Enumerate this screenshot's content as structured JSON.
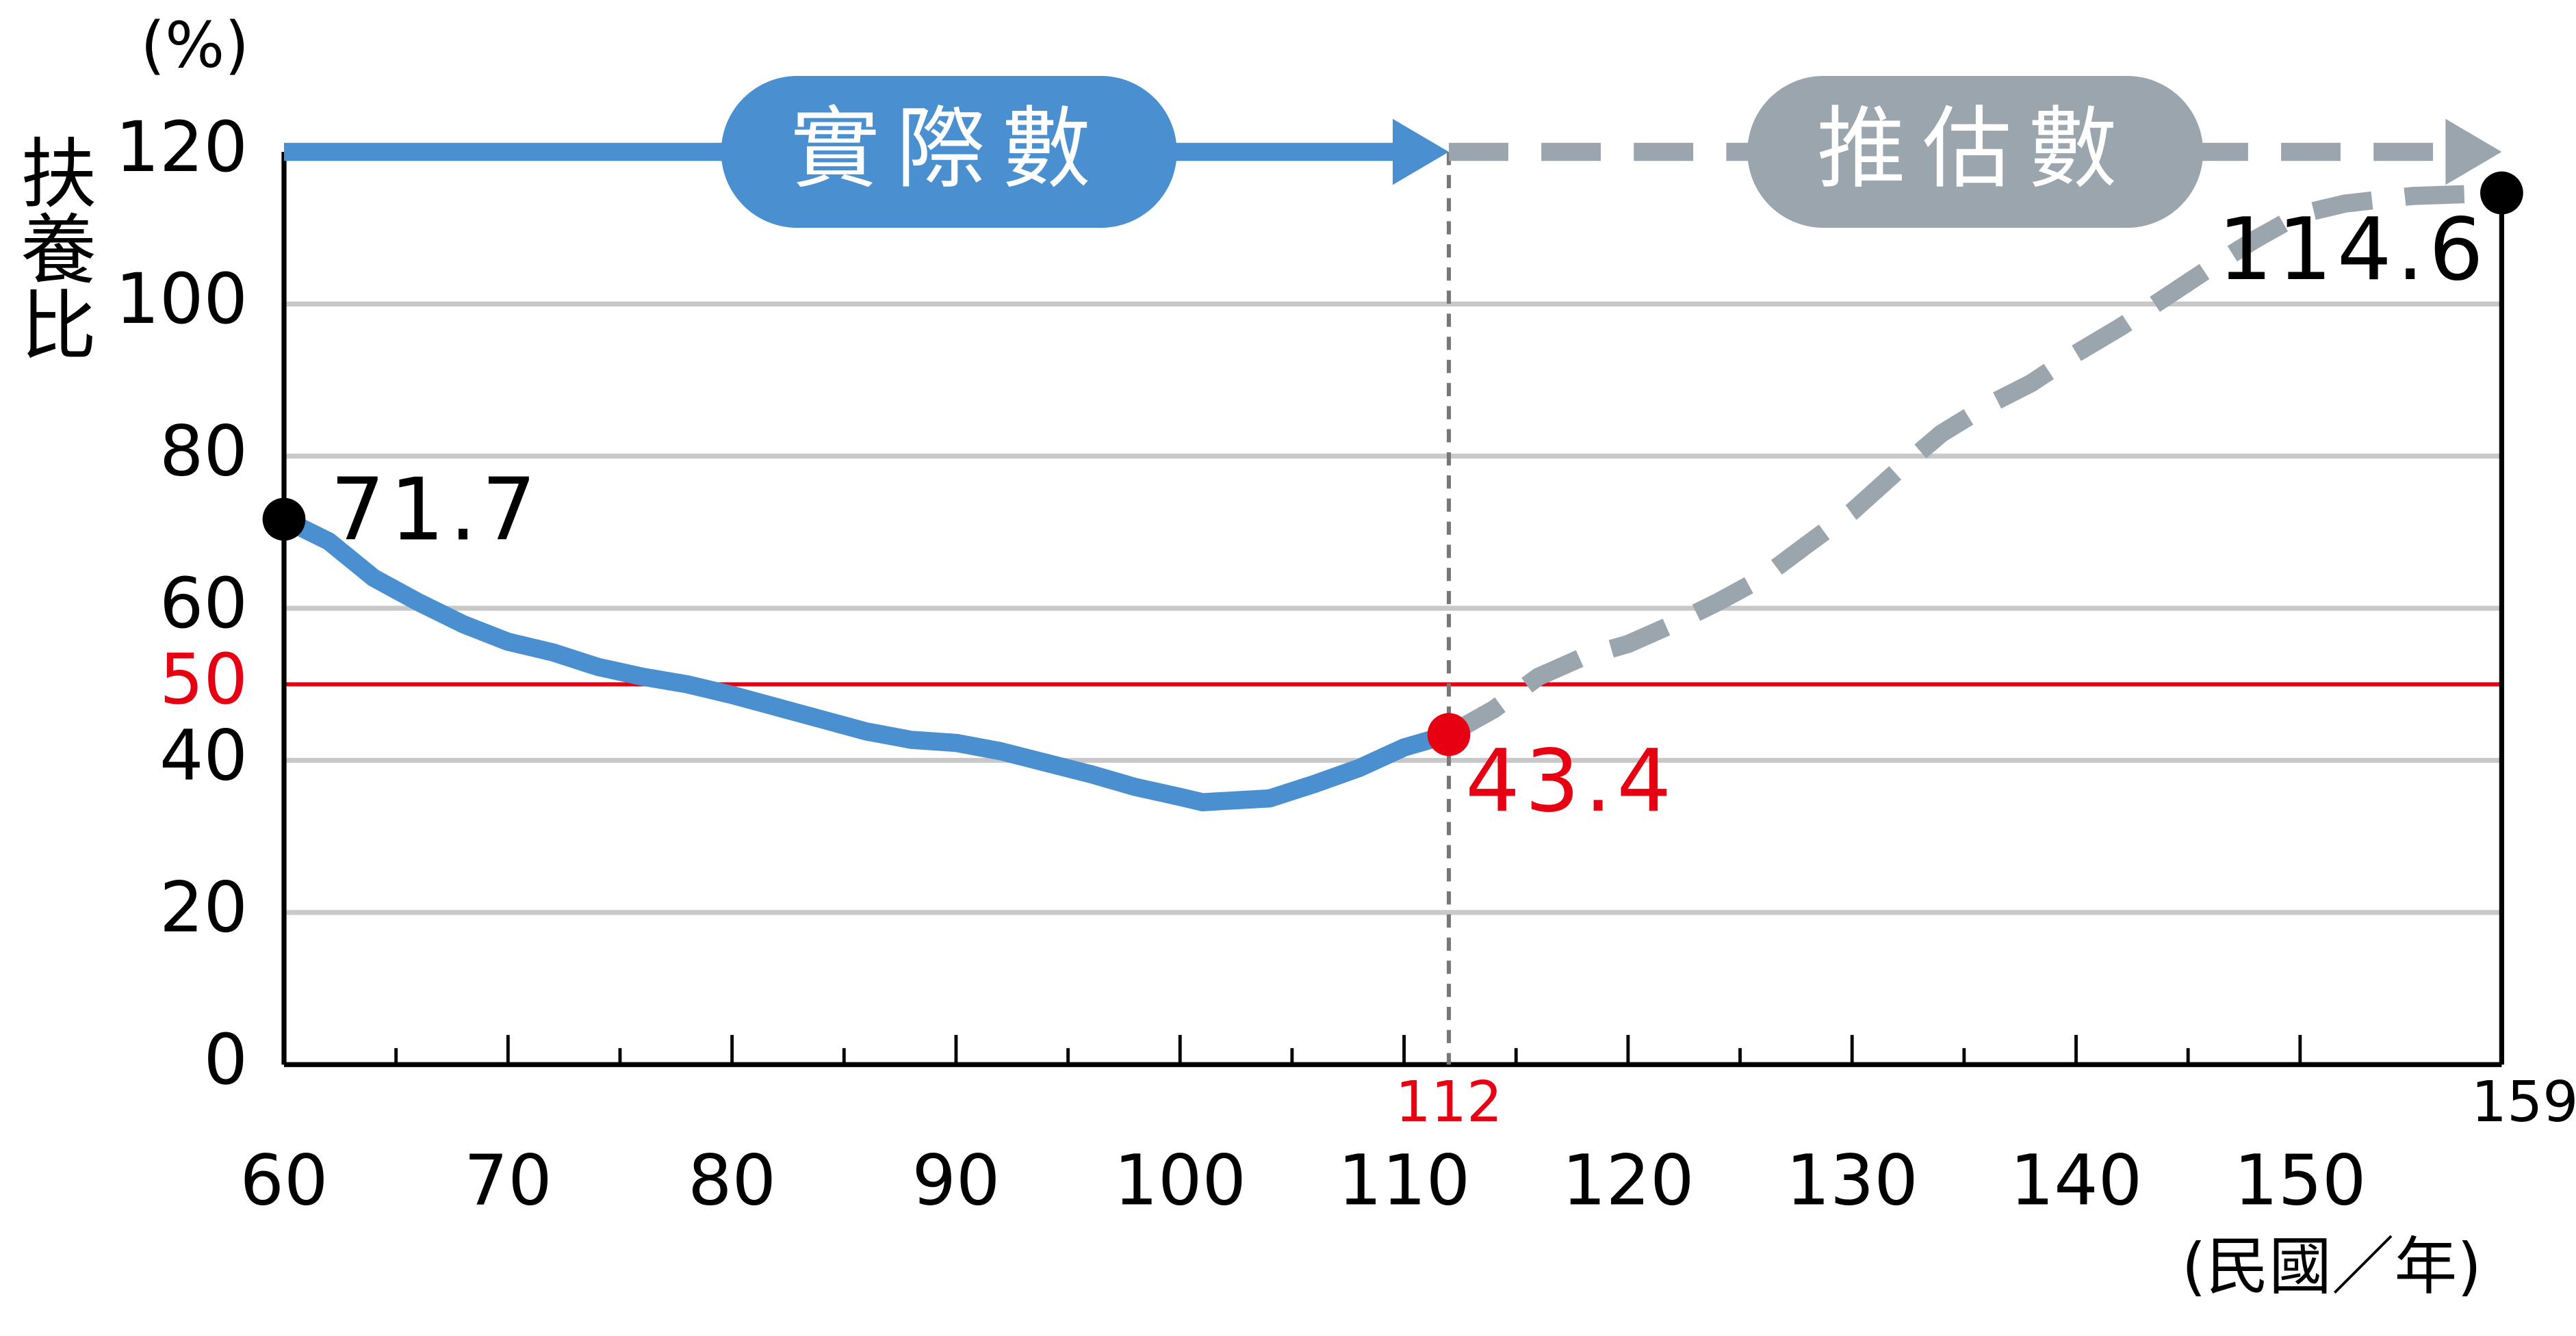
{
  "chart_data": {
    "type": "line",
    "y_label": "扶養比",
    "y_unit": "(%)",
    "x_label": "(民國／年)",
    "xlim": [
      60,
      159
    ],
    "ylim": [
      0,
      120
    ],
    "xticks": [
      60,
      70,
      80,
      90,
      100,
      110,
      120,
      130,
      140,
      150
    ],
    "extra_xticks": [
      {
        "value": 112,
        "color": "#e60012"
      },
      {
        "value": 159,
        "color": "#000000"
      }
    ],
    "yticks": [
      0,
      20,
      40,
      60,
      80,
      100,
      120
    ],
    "grid": true,
    "reference_line": {
      "value": 50,
      "label": "50",
      "color": "#e60012"
    },
    "series": [
      {
        "name": "實際數",
        "color": "#4a90d0",
        "dashed": false,
        "x": [
          60,
          62,
          64,
          66,
          68,
          70,
          72,
          74,
          76,
          78,
          80,
          82,
          84,
          86,
          88,
          90,
          92,
          94,
          96,
          98,
          100,
          101,
          104,
          106,
          108,
          110,
          112
        ],
        "values": [
          71.7,
          68.8,
          64,
          60.8,
          57.9,
          55.6,
          54.2,
          52.3,
          51,
          50,
          48.6,
          47,
          45.4,
          43.8,
          42.7,
          42.3,
          41.2,
          39.7,
          38.2,
          36.5,
          35.2,
          34.5,
          35,
          36.9,
          39,
          41.7,
          43.4
        ]
      },
      {
        "name": "推估數",
        "color": "#9aa5ad",
        "dashed": true,
        "x": [
          112,
          114,
          116,
          118,
          120,
          122,
          124,
          126,
          128,
          130,
          132,
          134,
          136,
          138,
          140,
          142,
          144,
          146,
          148,
          150,
          152,
          155,
          159
        ],
        "values": [
          43.4,
          46.7,
          51,
          53.6,
          55.3,
          57.9,
          60.8,
          64,
          68.4,
          72.7,
          78,
          83,
          86.6,
          89.6,
          93.5,
          97,
          100.9,
          104.8,
          108.5,
          111.8,
          113.2,
          114.2,
          114.6
        ]
      }
    ],
    "annotations": [
      {
        "text": "71.7",
        "x": 60,
        "y": 71.7,
        "color": "#000000"
      },
      {
        "text": "43.4",
        "x": 112,
        "y": 43.4,
        "color": "#e60012"
      },
      {
        "text": "114.6",
        "x": 159,
        "y": 114.6,
        "color": "#000000"
      }
    ]
  }
}
